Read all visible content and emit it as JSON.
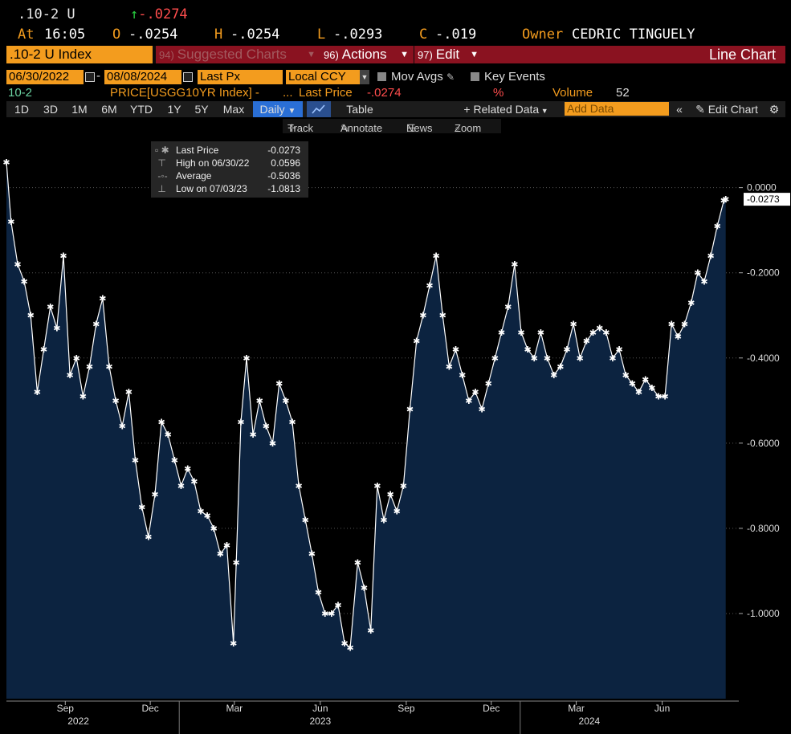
{
  "header": {
    "ticker": ".10-2 U",
    "change_arrow": "↑",
    "change": "-.0274",
    "at_label": "At",
    "time": "16:05",
    "o_label": "O",
    "open": "-.0254",
    "h_label": "H",
    "high": "-.0254",
    "l_label": "L",
    "low": "-.0293",
    "c_label": "C",
    "close": "-.019",
    "owner_label": "Owner",
    "owner": "CEDRIC TINGUELY"
  },
  "menubar": {
    "index": ".10-2 U Index",
    "suggested_num": "94)",
    "suggested": "Suggested Charts",
    "actions_num": "96)",
    "actions": "Actions",
    "edit_num": "97)",
    "edit": "Edit",
    "chart_type": "Line Chart"
  },
  "controls": {
    "start_date": "06/30/2022",
    "dash": "-",
    "end_date": "08/08/2024",
    "field": "Last Px",
    "currency": "Local CCY",
    "mov_avgs": "Mov Avgs",
    "key_events": "Key Events"
  },
  "info": {
    "name": "10-2",
    "price_label": "PRICE[USGG10YR Index] -",
    "ellipsis": "...",
    "last_price_label": "Last Price",
    "last_price": "-.0274",
    "pct": "%",
    "volume_label": "Volume",
    "volume": "52"
  },
  "toolbar": {
    "ranges": [
      "1D",
      "3D",
      "1M",
      "6M",
      "YTD",
      "1Y",
      "5Y",
      "Max"
    ],
    "period": "Daily",
    "table": "Table",
    "related": "Related Data",
    "add_data_placeholder": "Add Data",
    "edit_chart": "Edit Chart"
  },
  "subtoolbar": {
    "track": "Track",
    "annotate": "Annotate",
    "news": "News",
    "zoom": "Zoom"
  },
  "legend": {
    "last_label": "Last Price",
    "last_value": "-0.0273",
    "high_label": "High on 06/30/22",
    "high_value": "0.0596",
    "avg_label": "Average",
    "avg_value": "-0.5036",
    "low_label": "Low on 07/03/23",
    "low_value": "-1.0813"
  },
  "colors": {
    "area_fill": "#0c2340",
    "line": "#ffffff",
    "accent_orange": "#f39c1e",
    "menu_red": "#8a1220",
    "negative": "#ff4d4d"
  },
  "chart_data": {
    "type": "area",
    "title": ".10-2 U Index",
    "ylim": [
      -1.2,
      0.12
    ],
    "yticks": [
      0.0,
      -0.2,
      -0.4,
      -0.6,
      -0.8,
      -1.0
    ],
    "ytick_labels": [
      "0.0000",
      "-0.2000",
      "-0.4000",
      "-0.6000",
      "-0.8000",
      "-1.0000"
    ],
    "last_value_label": "-0.0273",
    "x_month_labels": [
      "Sep",
      "Dec",
      "Mar",
      "Jun",
      "Sep",
      "Dec",
      "Mar",
      "Jun"
    ],
    "x_month_dates": [
      "2022-09-01",
      "2022-12-01",
      "2023-03-01",
      "2023-06-01",
      "2023-09-01",
      "2023-12-01",
      "2024-03-01",
      "2024-06-01"
    ],
    "x_year_labels": [
      "2022",
      "2023",
      "2024"
    ],
    "x_year_dates": [
      "2022-09-15",
      "2023-06-01",
      "2024-03-15"
    ],
    "x_range": [
      "2022-06-30",
      "2024-08-22"
    ],
    "series": [
      {
        "name": "",
        "x": [
          "2022-06-30",
          "2022-07-05",
          "2022-07-12",
          "2022-07-19",
          "2022-07-26",
          "2022-08-02",
          "2022-08-09",
          "2022-08-16",
          "2022-08-23",
          "2022-08-30",
          "2022-09-06",
          "2022-09-13",
          "2022-09-20",
          "2022-09-27",
          "2022-10-04",
          "2022-10-11",
          "2022-10-18",
          "2022-10-25",
          "2022-11-01",
          "2022-11-08",
          "2022-11-15",
          "2022-11-22",
          "2022-11-29",
          "2022-12-06",
          "2022-12-13",
          "2022-12-20",
          "2022-12-27",
          "2023-01-03",
          "2023-01-10",
          "2023-01-17",
          "2023-01-24",
          "2023-01-31",
          "2023-02-07",
          "2023-02-14",
          "2023-02-21",
          "2023-02-28",
          "2023-03-03",
          "2023-03-08",
          "2023-03-14",
          "2023-03-21",
          "2023-03-28",
          "2023-04-04",
          "2023-04-11",
          "2023-04-18",
          "2023-04-25",
          "2023-05-02",
          "2023-05-09",
          "2023-05-16",
          "2023-05-23",
          "2023-05-30",
          "2023-06-06",
          "2023-06-13",
          "2023-06-20",
          "2023-06-27",
          "2023-07-03",
          "2023-07-11",
          "2023-07-18",
          "2023-07-25",
          "2023-08-01",
          "2023-08-08",
          "2023-08-15",
          "2023-08-22",
          "2023-08-29",
          "2023-09-05",
          "2023-09-12",
          "2023-09-19",
          "2023-09-26",
          "2023-10-03",
          "2023-10-10",
          "2023-10-17",
          "2023-10-24",
          "2023-10-31",
          "2023-11-07",
          "2023-11-14",
          "2023-11-21",
          "2023-11-28",
          "2023-12-05",
          "2023-12-12",
          "2023-12-19",
          "2023-12-26",
          "2024-01-02",
          "2024-01-09",
          "2024-01-16",
          "2024-01-23",
          "2024-01-30",
          "2024-02-06",
          "2024-02-13",
          "2024-02-20",
          "2024-02-27",
          "2024-03-05",
          "2024-03-12",
          "2024-03-19",
          "2024-03-26",
          "2024-04-02",
          "2024-04-09",
          "2024-04-16",
          "2024-04-23",
          "2024-04-30",
          "2024-05-07",
          "2024-05-14",
          "2024-05-21",
          "2024-05-28",
          "2024-06-04",
          "2024-06-11",
          "2024-06-18",
          "2024-06-25",
          "2024-07-02",
          "2024-07-09",
          "2024-07-16",
          "2024-07-23",
          "2024-07-30",
          "2024-08-06",
          "2024-08-08"
        ],
        "values": [
          0.06,
          -0.08,
          -0.18,
          -0.22,
          -0.3,
          -0.48,
          -0.38,
          -0.28,
          -0.33,
          -0.16,
          -0.44,
          -0.4,
          -0.49,
          -0.42,
          -0.32,
          -0.26,
          -0.42,
          -0.5,
          -0.56,
          -0.48,
          -0.64,
          -0.75,
          -0.82,
          -0.72,
          -0.55,
          -0.58,
          -0.64,
          -0.7,
          -0.66,
          -0.69,
          -0.76,
          -0.77,
          -0.8,
          -0.86,
          -0.84,
          -1.07,
          -0.88,
          -0.55,
          -0.4,
          -0.58,
          -0.5,
          -0.56,
          -0.6,
          -0.46,
          -0.5,
          -0.55,
          -0.7,
          -0.78,
          -0.86,
          -0.95,
          -1.0,
          -1.0,
          -0.98,
          -1.07,
          -1.08,
          -0.88,
          -0.94,
          -1.04,
          -0.7,
          -0.78,
          -0.72,
          -0.76,
          -0.7,
          -0.52,
          -0.36,
          -0.3,
          -0.23,
          -0.16,
          -0.3,
          -0.42,
          -0.38,
          -0.44,
          -0.5,
          -0.48,
          -0.52,
          -0.46,
          -0.4,
          -0.34,
          -0.28,
          -0.18,
          -0.34,
          -0.38,
          -0.4,
          -0.34,
          -0.4,
          -0.44,
          -0.42,
          -0.38,
          -0.32,
          -0.4,
          -0.36,
          -0.34,
          -0.33,
          -0.34,
          -0.4,
          -0.38,
          -0.44,
          -0.46,
          -0.48,
          -0.45,
          -0.47,
          -0.49,
          -0.49,
          -0.32,
          -0.35,
          -0.32,
          -0.27,
          -0.2,
          -0.22,
          -0.16,
          -0.09,
          -0.03,
          -0.0273
        ]
      }
    ]
  }
}
